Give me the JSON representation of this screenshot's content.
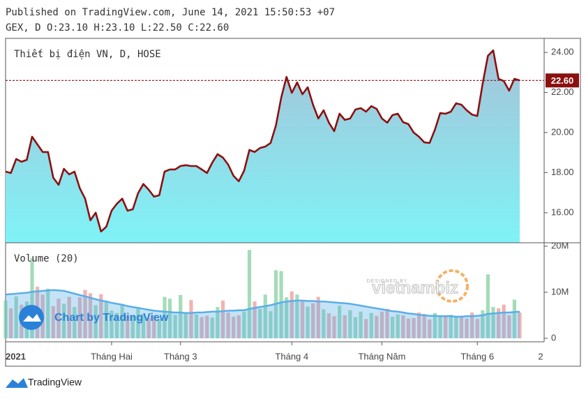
{
  "header": {
    "published": "Published on TradingView.com, June 14, 2021 15:50:53 +07",
    "ohlc": "GEX, D O:23.10 H:23.10 L:22.50 C:22.60"
  },
  "watermark": "Chart by TradingView",
  "overlay_logo": {
    "top": "DESIGNED BY",
    "name": "vietnambiz"
  },
  "footer": "TradingView",
  "chart_data": [
    {
      "type": "area",
      "title": "Thiết bị điện VN, D, HOSE",
      "color": "#8b1010",
      "fill_top": "#a6c3d8",
      "fill_bottom": "#7ff3f7",
      "categories": [
        "2021",
        null,
        null,
        null,
        null,
        null,
        null,
        null,
        null,
        null,
        null,
        null,
        null,
        null,
        null,
        null,
        null,
        null,
        null,
        null,
        "Tháng Hai",
        null,
        null,
        null,
        null,
        null,
        null,
        null,
        null,
        null,
        null,
        null,
        null,
        "Tháng 3",
        null,
        null,
        null,
        null,
        null,
        null,
        null,
        null,
        null,
        null,
        null,
        null,
        null,
        null,
        null,
        null,
        null,
        null,
        null,
        null,
        "Tháng 4",
        null,
        null,
        null,
        null,
        null,
        null,
        null,
        null,
        null,
        null,
        null,
        null,
        null,
        null,
        null,
        null,
        "Tháng Năm",
        null,
        null,
        null,
        null,
        null,
        null,
        null,
        null,
        null,
        null,
        null,
        null,
        null,
        null,
        null,
        null,
        null,
        "Tháng 6",
        null,
        null,
        null,
        null,
        null,
        null,
        null,
        null
      ],
      "x_next_label": "2",
      "values": [
        18.05,
        17.98,
        18.68,
        18.54,
        18.64,
        19.79,
        19.41,
        19.03,
        19.03,
        17.74,
        17.39,
        18.19,
        17.91,
        18.05,
        17.22,
        16.7,
        15.62,
        16.0,
        15.06,
        15.3,
        16.1,
        16.45,
        16.7,
        16.1,
        16.17,
        16.97,
        17.43,
        17.15,
        16.8,
        16.87,
        18.05,
        18.16,
        18.16,
        18.33,
        18.37,
        18.33,
        18.33,
        18.16,
        17.98,
        18.5,
        18.92,
        18.75,
        18.4,
        17.84,
        17.57,
        18.09,
        19.13,
        19.03,
        19.23,
        19.3,
        19.48,
        20.35,
        21.74,
        22.78,
        21.98,
        22.5,
        21.91,
        22.26,
        21.39,
        20.7,
        21.11,
        20.49,
        20.07,
        20.94,
        20.63,
        20.7,
        21.15,
        21.22,
        21.04,
        21.32,
        21.18,
        20.7,
        20.49,
        20.87,
        20.94,
        20.52,
        20.42,
        20.0,
        19.79,
        19.51,
        19.48,
        20.14,
        20.97,
        20.94,
        21.04,
        21.46,
        21.39,
        21.11,
        20.9,
        20.83,
        22.43,
        23.83,
        24.1,
        22.68,
        22.57,
        22.09,
        22.68,
        22.6
      ],
      "price_line": {
        "value": 22.6,
        "label": "22.60"
      },
      "ylim": [
        14.5,
        24.7
      ],
      "yticks": [
        {
          "value": 16,
          "label": "16.00"
        },
        {
          "value": 18,
          "label": "18.00"
        },
        {
          "value": 20,
          "label": "20.00"
        },
        {
          "value": 22,
          "label": "22.00"
        },
        {
          "value": 24,
          "label": "24.00"
        }
      ]
    },
    {
      "type": "bar",
      "title": "Volume (20)",
      "up_color": "#86d0a0",
      "down_color": "#ec9a9a",
      "average_color": "#5aaee8",
      "values": [
        8.2,
        6.5,
        9.1,
        7.3,
        8.0,
        17.4,
        11.2,
        9.5,
        10.8,
        7.0,
        8.6,
        7.5,
        9.0,
        6.8,
        8.9,
        10.5,
        9.8,
        7.2,
        9.6,
        8.1,
        6.0,
        5.5,
        7.2,
        5.0,
        4.8,
        6.5,
        5.2,
        4.5,
        5.0,
        4.2,
        9.0,
        8.6,
        5.1,
        9.4,
        5.5,
        8.3,
        5.2,
        4.6,
        4.9,
        4.5,
        6.8,
        8.2,
        5.6,
        4.7,
        5.0,
        5.8,
        19.2,
        8.0,
        6.4,
        9.5,
        5.9,
        14.8,
        14.6,
        8.9,
        10.2,
        9.5,
        8.0,
        6.9,
        7.6,
        9.0,
        6.3,
        5.4,
        4.8,
        7.1,
        5.0,
        6.1,
        4.6,
        5.8,
        4.2,
        5.5,
        4.9,
        5.8,
        6.4,
        4.7,
        5.2,
        5.0,
        4.3,
        4.4,
        5.6,
        5.3,
        4.1,
        5.5,
        5.0,
        4.8,
        5.1,
        4.7,
        4.9,
        4.3,
        5.6,
        4.2,
        6.1,
        13.9,
        6.8,
        6.5,
        7.3,
        5.0,
        8.4,
        5.6
      ],
      "average": [
        9.5,
        9.6,
        9.7,
        9.8,
        9.9,
        10.1,
        10.2,
        10.3,
        10.4,
        10.5,
        10.4,
        10.3,
        10.0,
        9.7,
        9.4,
        9.1,
        8.8,
        8.5,
        8.2,
        8.0,
        7.7,
        7.5,
        7.3,
        7.0,
        6.8,
        6.6,
        6.4,
        6.2,
        6.0,
        5.9,
        5.8,
        5.7,
        5.6,
        5.6,
        5.5,
        5.5,
        5.6,
        5.6,
        5.7,
        5.8,
        5.8,
        5.9,
        6.0,
        6.0,
        6.1,
        6.1,
        6.4,
        6.6,
        6.8,
        7.0,
        7.2,
        7.5,
        7.8,
        8.0,
        8.1,
        8.2,
        8.2,
        8.1,
        8.1,
        8.0,
        8.0,
        7.9,
        7.8,
        7.7,
        7.6,
        7.5,
        7.3,
        7.1,
        6.9,
        6.7,
        6.5,
        6.3,
        6.1,
        5.9,
        5.8,
        5.6,
        5.4,
        5.3,
        5.1,
        5.0,
        4.9,
        4.9,
        4.8,
        4.8,
        4.8,
        4.7,
        4.7,
        4.8,
        4.8,
        4.9,
        5.0,
        5.3,
        5.4,
        5.5,
        5.6,
        5.6,
        5.7,
        5.8
      ],
      "ylim": [
        -0.76,
        20.76
      ],
      "yticks": [
        0,
        {
          "value": 10,
          "label": "10M"
        },
        {
          "value": 20,
          "label": "20M"
        }
      ]
    }
  ]
}
